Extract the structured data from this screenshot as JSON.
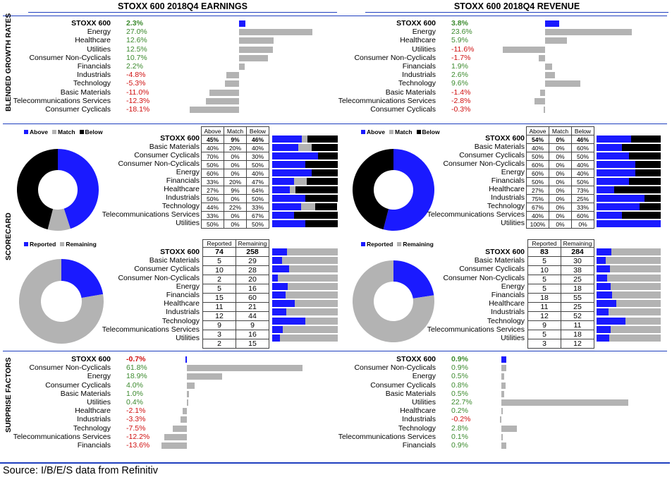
{
  "headers": {
    "earnings": "STOXX 600 2018Q4 EARNINGS",
    "revenue": "STOXX 600 2018Q4 REVENUE"
  },
  "side_labels": {
    "growth": "BLENDED GROWTH RATES",
    "scorecard": "SCORECARD",
    "surprise": "SURPRISE FACTORS"
  },
  "source": "Source: I/B/E/S data from Refinitiv",
  "colors": {
    "blue": "#1a1aff",
    "gray": "#b3b3b3",
    "black": "#000000",
    "positive": "#3c8a2e",
    "negative": "#d01010"
  },
  "legends": {
    "above": "Above",
    "match": "Match",
    "below": "Below",
    "reported": "Reported",
    "remaining": "Remaining"
  },
  "table_headers": {
    "above": "Above",
    "match": "Match",
    "below": "Below",
    "reported": "Reported",
    "remaining": "Remaining"
  },
  "chart_data": [
    {
      "type": "bar",
      "id": "earnings_growth",
      "unit": "%",
      "categories": [
        "STOXX 600",
        "Energy",
        "Healthcare",
        "Utilities",
        "Consumer Non-Cyclicals",
        "Financials",
        "Industrials",
        "Technology",
        "Basic Materials",
        "Telecommunications Services",
        "Consumer Cyclicals"
      ],
      "labels": [
        "2.3%",
        "27.0%",
        "12.6%",
        "12.5%",
        "10.7%",
        "2.2%",
        "-4.8%",
        "-5.3%",
        "-11.0%",
        "-12.3%",
        "-18.1%"
      ],
      "values": [
        2.3,
        27.0,
        12.6,
        12.5,
        10.7,
        2.2,
        -4.8,
        -5.3,
        -11.0,
        -12.3,
        -18.1
      ]
    },
    {
      "type": "bar",
      "id": "revenue_growth",
      "unit": "%",
      "categories": [
        "STOXX 600",
        "Energy",
        "Healthcare",
        "Utilities",
        "Consumer Non-Cyclicals",
        "Financials",
        "Industrials",
        "Technology",
        "Basic Materials",
        "Telecommunications Services",
        "Consumer Cyclicals"
      ],
      "labels": [
        "3.8%",
        "23.6%",
        "5.9%",
        "-11.6%",
        "-1.7%",
        "1.9%",
        "2.6%",
        "9.6%",
        "-1.4%",
        "-2.8%",
        "-0.3%"
      ],
      "values": [
        3.8,
        23.6,
        5.9,
        -11.6,
        -1.7,
        1.9,
        2.6,
        9.6,
        -1.4,
        -2.8,
        -0.3
      ]
    },
    {
      "type": "table",
      "id": "earnings_scorecard",
      "categories": [
        "STOXX 600",
        "Basic Materials",
        "Consumer Cyclicals",
        "Consumer Non-Cyclicals",
        "Energy",
        "Financials",
        "Healthcare",
        "Industrials",
        "Technology",
        "Telecommunications Services",
        "Utilities"
      ],
      "above": [
        "45%",
        "40%",
        "70%",
        "50%",
        "60%",
        "33%",
        "27%",
        "50%",
        "44%",
        "33%",
        "50%"
      ],
      "match": [
        "9%",
        "20%",
        "0%",
        "0%",
        "0%",
        "20%",
        "9%",
        "0%",
        "22%",
        "0%",
        "0%"
      ],
      "below": [
        "46%",
        "40%",
        "30%",
        "50%",
        "40%",
        "47%",
        "64%",
        "50%",
        "33%",
        "67%",
        "50%"
      ],
      "above_v": [
        45,
        40,
        70,
        50,
        60,
        33,
        27,
        50,
        44,
        33,
        50
      ],
      "match_v": [
        9,
        20,
        0,
        0,
        0,
        20,
        9,
        0,
        22,
        0,
        0
      ],
      "below_v": [
        46,
        40,
        30,
        50,
        40,
        47,
        64,
        50,
        33,
        67,
        50
      ]
    },
    {
      "type": "table",
      "id": "revenue_scorecard",
      "categories": [
        "STOXX 600",
        "Basic Materials",
        "Consumer Cyclicals",
        "Consumer Non-Cyclicals",
        "Energy",
        "Financials",
        "Healthcare",
        "Industrials",
        "Technology",
        "Telecommunications Services",
        "Utilities"
      ],
      "above": [
        "54%",
        "40%",
        "50%",
        "60%",
        "60%",
        "50%",
        "27%",
        "75%",
        "67%",
        "40%",
        "100%"
      ],
      "match": [
        "0%",
        "0%",
        "0%",
        "0%",
        "0%",
        "0%",
        "0%",
        "0%",
        "0%",
        "0%",
        "0%"
      ],
      "below": [
        "46%",
        "60%",
        "50%",
        "40%",
        "40%",
        "50%",
        "73%",
        "25%",
        "33%",
        "60%",
        "0%"
      ],
      "above_v": [
        54,
        40,
        50,
        60,
        60,
        50,
        27,
        75,
        67,
        40,
        100
      ],
      "match_v": [
        0,
        0,
        0,
        0,
        0,
        0,
        0,
        0,
        0,
        0,
        0
      ],
      "below_v": [
        46,
        60,
        50,
        40,
        40,
        50,
        73,
        25,
        33,
        60,
        0
      ]
    },
    {
      "type": "table",
      "id": "earnings_reported",
      "categories": [
        "STOXX 600",
        "Basic Materials",
        "Consumer Cyclicals",
        "Consumer Non-Cyclicals",
        "Energy",
        "Financials",
        "Healthcare",
        "Industrials",
        "Technology",
        "Telecommunications Services",
        "Utilities"
      ],
      "reported": [
        74,
        5,
        10,
        2,
        5,
        15,
        11,
        12,
        9,
        3,
        2
      ],
      "remaining": [
        258,
        29,
        28,
        20,
        16,
        60,
        21,
        44,
        9,
        16,
        15
      ]
    },
    {
      "type": "table",
      "id": "revenue_reported",
      "categories": [
        "STOXX 600",
        "Basic Materials",
        "Consumer Cyclicals",
        "Consumer Non-Cyclicals",
        "Energy",
        "Financials",
        "Healthcare",
        "Industrials",
        "Technology",
        "Telecommunications Services",
        "Utilities"
      ],
      "reported": [
        83,
        5,
        10,
        5,
        5,
        18,
        11,
        12,
        9,
        5,
        3
      ],
      "remaining": [
        284,
        30,
        38,
        25,
        18,
        55,
        25,
        52,
        11,
        18,
        12
      ]
    },
    {
      "type": "bar",
      "id": "earnings_surprise",
      "unit": "%",
      "categories": [
        "STOXX 600",
        "Consumer Non-Cyclicals",
        "Energy",
        "Consumer Cyclicals",
        "Basic Materials",
        "Utilities",
        "Healthcare",
        "Industrials",
        "Technology",
        "Telecommunications Services",
        "Financials"
      ],
      "labels": [
        "-0.7%",
        "61.8%",
        "18.9%",
        "4.0%",
        "1.0%",
        "0.4%",
        "-2.1%",
        "-3.3%",
        "-7.5%",
        "-12.2%",
        "-13.6%"
      ],
      "values": [
        -0.7,
        61.8,
        18.9,
        4.0,
        1.0,
        0.4,
        -2.1,
        -3.3,
        -7.5,
        -12.2,
        -13.6
      ]
    },
    {
      "type": "bar",
      "id": "revenue_surprise",
      "unit": "%",
      "categories": [
        "STOXX 600",
        "Consumer Non-Cyclicals",
        "Energy",
        "Consumer Cyclicals",
        "Basic Materials",
        "Utilities",
        "Healthcare",
        "Industrials",
        "Technology",
        "Telecommunications Services",
        "Financials"
      ],
      "labels": [
        "0.9%",
        "0.9%",
        "0.5%",
        "0.8%",
        "0.5%",
        "22.7%",
        "0.2%",
        "-0.2%",
        "2.8%",
        "0.1%",
        "0.9%"
      ],
      "values": [
        0.9,
        0.9,
        0.5,
        0.8,
        0.5,
        22.7,
        0.2,
        -0.2,
        2.8,
        0.1,
        0.9
      ]
    }
  ]
}
